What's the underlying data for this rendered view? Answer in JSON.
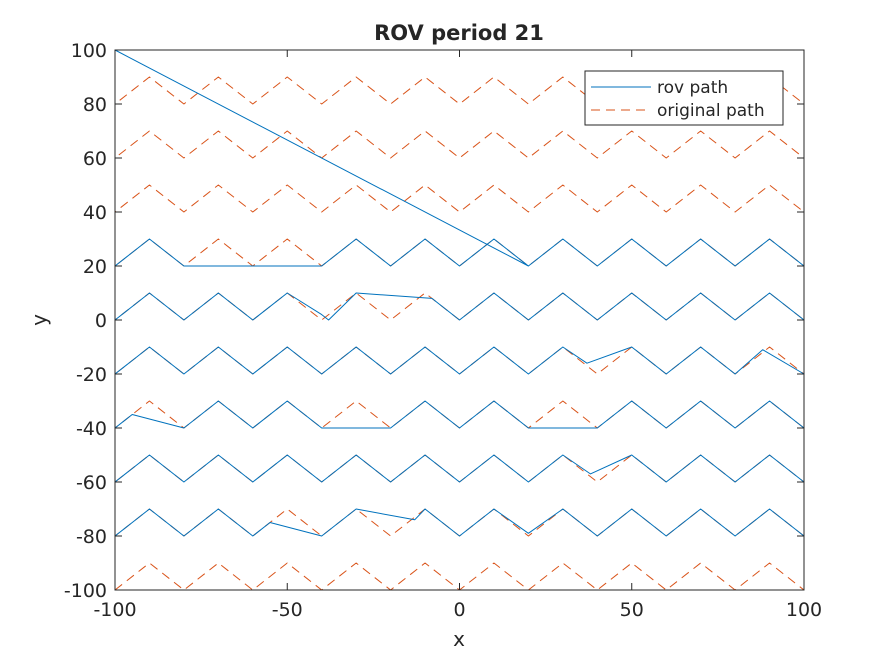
{
  "chart_data": {
    "type": "line",
    "title": "ROV period 21",
    "xlabel": "x",
    "ylabel": "y",
    "xlim": [
      -100,
      100
    ],
    "ylim": [
      -100,
      100
    ],
    "xticks": [
      -100,
      -50,
      0,
      50,
      100
    ],
    "yticks": [
      -100,
      -80,
      -60,
      -40,
      -20,
      0,
      20,
      40,
      60,
      80,
      100
    ],
    "grid": false,
    "box": true,
    "legend_position": "top-right",
    "colors": {
      "rov_path": "#0072BD",
      "original_path": "#D95319",
      "axes": "#262626"
    },
    "series": [
      {
        "name": "rov path",
        "style": "solid",
        "points": [
          [
            20,
            20
          ],
          [
            -100,
            100
          ],
          [
            -100,
            -100
          ],
          [
            -100,
            -80
          ],
          [
            -90,
            -70
          ],
          [
            -80,
            -80
          ],
          [
            -70,
            -70
          ],
          [
            -60,
            -80
          ],
          [
            -55,
            -75
          ],
          [
            -40,
            -80
          ],
          [
            -30,
            -70
          ],
          [
            -13,
            -74
          ],
          [
            -10,
            -70
          ],
          [
            0,
            -80
          ],
          [
            10,
            -70
          ],
          [
            20,
            -79
          ],
          [
            30,
            -70
          ],
          [
            40,
            -80
          ],
          [
            50,
            -70
          ],
          [
            60,
            -80
          ],
          [
            70,
            -70
          ],
          [
            80,
            -80
          ],
          [
            90,
            -70
          ],
          [
            100,
            -80
          ],
          [
            100,
            -60
          ],
          [
            90,
            -50
          ],
          [
            80,
            -60
          ],
          [
            70,
            -50
          ],
          [
            60,
            -60
          ],
          [
            50,
            -50
          ],
          [
            38,
            -57
          ],
          [
            30,
            -50
          ],
          [
            20,
            -60
          ],
          [
            10,
            -50
          ],
          [
            0,
            -60
          ],
          [
            -10,
            -50
          ],
          [
            -20,
            -60
          ],
          [
            -30,
            -50
          ],
          [
            -40,
            -60
          ],
          [
            -50,
            -50
          ],
          [
            -60,
            -60
          ],
          [
            -70,
            -50
          ],
          [
            -80,
            -60
          ],
          [
            -90,
            -50
          ],
          [
            -100,
            -60
          ],
          [
            -100,
            -40
          ],
          [
            -95,
            -35
          ],
          [
            -80,
            -40
          ],
          [
            -70,
            -30
          ],
          [
            -60,
            -40
          ],
          [
            -50,
            -30
          ],
          [
            -40,
            -40
          ],
          [
            -20,
            -40
          ],
          [
            -10,
            -30
          ],
          [
            0,
            -40
          ],
          [
            10,
            -30
          ],
          [
            20,
            -40
          ],
          [
            40,
            -40
          ],
          [
            50,
            -30
          ],
          [
            60,
            -40
          ],
          [
            70,
            -30
          ],
          [
            80,
            -40
          ],
          [
            90,
            -30
          ],
          [
            100,
            -40
          ],
          [
            100,
            -20
          ],
          [
            88,
            -11
          ],
          [
            80,
            -20
          ],
          [
            70,
            -10
          ],
          [
            60,
            -20
          ],
          [
            50,
            -10
          ],
          [
            37,
            -16
          ],
          [
            30,
            -10
          ],
          [
            20,
            -20
          ],
          [
            10,
            -10
          ],
          [
            0,
            -20
          ],
          [
            -10,
            -10
          ],
          [
            -20,
            -20
          ],
          [
            -30,
            -10
          ],
          [
            -40,
            -20
          ],
          [
            -50,
            -10
          ],
          [
            -60,
            -20
          ],
          [
            -70,
            -10
          ],
          [
            -80,
            -20
          ],
          [
            -90,
            -10
          ],
          [
            -100,
            -20
          ],
          [
            -100,
            0
          ],
          [
            -90,
            10
          ],
          [
            -80,
            0
          ],
          [
            -70,
            10
          ],
          [
            -60,
            0
          ],
          [
            -50,
            10
          ],
          [
            -40,
            2
          ],
          [
            -38,
            0
          ],
          [
            -30,
            10
          ],
          [
            -8,
            8
          ],
          [
            0,
            0
          ],
          [
            10,
            10
          ],
          [
            20,
            0
          ],
          [
            30,
            10
          ],
          [
            40,
            0
          ],
          [
            50,
            10
          ],
          [
            60,
            0
          ],
          [
            70,
            10
          ],
          [
            80,
            0
          ],
          [
            90,
            10
          ],
          [
            100,
            0
          ],
          [
            100,
            20
          ],
          [
            90,
            30
          ],
          [
            80,
            20
          ],
          [
            70,
            30
          ],
          [
            60,
            20
          ],
          [
            50,
            30
          ],
          [
            40,
            20
          ],
          [
            30,
            30
          ],
          [
            20,
            20
          ],
          [
            10,
            30
          ],
          [
            0,
            20
          ],
          [
            -10,
            30
          ],
          [
            -20,
            20
          ],
          [
            -30,
            30
          ],
          [
            -40,
            20
          ],
          [
            -80,
            20
          ],
          [
            -90,
            30
          ],
          [
            -100,
            20
          ]
        ]
      },
      {
        "name": "original path",
        "style": "dashed",
        "points": [
          [
            -100,
            -100
          ],
          [
            -90,
            -90
          ],
          [
            -80,
            -100
          ],
          [
            -70,
            -90
          ],
          [
            -60,
            -100
          ],
          [
            -50,
            -90
          ],
          [
            -40,
            -100
          ],
          [
            -30,
            -90
          ],
          [
            -20,
            -100
          ],
          [
            -10,
            -90
          ],
          [
            0,
            -100
          ],
          [
            10,
            -90
          ],
          [
            20,
            -100
          ],
          [
            30,
            -90
          ],
          [
            40,
            -100
          ],
          [
            50,
            -90
          ],
          [
            60,
            -100
          ],
          [
            70,
            -90
          ],
          [
            80,
            -100
          ],
          [
            90,
            -90
          ],
          [
            100,
            -100
          ],
          [
            100,
            -80
          ],
          [
            90,
            -70
          ],
          [
            80,
            -80
          ],
          [
            70,
            -70
          ],
          [
            60,
            -80
          ],
          [
            50,
            -70
          ],
          [
            40,
            -80
          ],
          [
            30,
            -70
          ],
          [
            20,
            -80
          ],
          [
            10,
            -70
          ],
          [
            0,
            -80
          ],
          [
            -10,
            -70
          ],
          [
            -20,
            -80
          ],
          [
            -30,
            -70
          ],
          [
            -40,
            -80
          ],
          [
            -50,
            -70
          ],
          [
            -60,
            -80
          ],
          [
            -70,
            -70
          ],
          [
            -80,
            -80
          ],
          [
            -90,
            -70
          ],
          [
            -100,
            -80
          ],
          [
            -100,
            -60
          ],
          [
            -90,
            -50
          ],
          [
            -80,
            -60
          ],
          [
            -70,
            -50
          ],
          [
            -60,
            -60
          ],
          [
            -50,
            -50
          ],
          [
            -40,
            -60
          ],
          [
            -30,
            -50
          ],
          [
            -20,
            -60
          ],
          [
            -10,
            -50
          ],
          [
            0,
            -60
          ],
          [
            10,
            -50
          ],
          [
            20,
            -60
          ],
          [
            30,
            -50
          ],
          [
            40,
            -60
          ],
          [
            50,
            -50
          ],
          [
            60,
            -60
          ],
          [
            70,
            -50
          ],
          [
            80,
            -60
          ],
          [
            90,
            -50
          ],
          [
            100,
            -60
          ],
          [
            100,
            -40
          ],
          [
            90,
            -30
          ],
          [
            80,
            -40
          ],
          [
            70,
            -30
          ],
          [
            60,
            -40
          ],
          [
            50,
            -30
          ],
          [
            40,
            -40
          ],
          [
            30,
            -30
          ],
          [
            20,
            -40
          ],
          [
            10,
            -30
          ],
          [
            0,
            -40
          ],
          [
            -10,
            -30
          ],
          [
            -20,
            -40
          ],
          [
            -30,
            -30
          ],
          [
            -40,
            -40
          ],
          [
            -50,
            -30
          ],
          [
            -60,
            -40
          ],
          [
            -70,
            -30
          ],
          [
            -80,
            -40
          ],
          [
            -90,
            -30
          ],
          [
            -100,
            -40
          ],
          [
            -100,
            -20
          ],
          [
            -90,
            -10
          ],
          [
            -80,
            -20
          ],
          [
            -70,
            -10
          ],
          [
            -60,
            -20
          ],
          [
            -50,
            -10
          ],
          [
            -40,
            -20
          ],
          [
            -30,
            -10
          ],
          [
            -20,
            -20
          ],
          [
            -10,
            -10
          ],
          [
            0,
            -20
          ],
          [
            10,
            -10
          ],
          [
            20,
            -20
          ],
          [
            30,
            -10
          ],
          [
            40,
            -20
          ],
          [
            50,
            -10
          ],
          [
            60,
            -20
          ],
          [
            70,
            -10
          ],
          [
            80,
            -20
          ],
          [
            90,
            -10
          ],
          [
            100,
            -20
          ],
          [
            100,
            0
          ],
          [
            90,
            10
          ],
          [
            80,
            0
          ],
          [
            70,
            10
          ],
          [
            60,
            0
          ],
          [
            50,
            10
          ],
          [
            40,
            0
          ],
          [
            30,
            10
          ],
          [
            20,
            0
          ],
          [
            10,
            10
          ],
          [
            0,
            0
          ],
          [
            -10,
            10
          ],
          [
            -20,
            0
          ],
          [
            -30,
            10
          ],
          [
            -40,
            0
          ],
          [
            -50,
            10
          ],
          [
            -60,
            0
          ],
          [
            -70,
            10
          ],
          [
            -80,
            0
          ],
          [
            -90,
            10
          ],
          [
            -100,
            0
          ],
          [
            -100,
            20
          ],
          [
            -90,
            30
          ],
          [
            -80,
            20
          ],
          [
            -70,
            30
          ],
          [
            -60,
            20
          ],
          [
            -50,
            30
          ],
          [
            -40,
            20
          ],
          [
            -30,
            30
          ],
          [
            -20,
            20
          ],
          [
            -10,
            30
          ],
          [
            0,
            20
          ],
          [
            10,
            30
          ],
          [
            20,
            20
          ],
          [
            30,
            30
          ],
          [
            40,
            20
          ],
          [
            50,
            30
          ],
          [
            60,
            20
          ],
          [
            70,
            30
          ],
          [
            80,
            20
          ],
          [
            90,
            30
          ],
          [
            100,
            20
          ],
          [
            100,
            40
          ],
          [
            90,
            50
          ],
          [
            80,
            40
          ],
          [
            70,
            50
          ],
          [
            60,
            40
          ],
          [
            50,
            50
          ],
          [
            40,
            40
          ],
          [
            30,
            50
          ],
          [
            20,
            40
          ],
          [
            10,
            50
          ],
          [
            0,
            40
          ],
          [
            -10,
            50
          ],
          [
            -20,
            40
          ],
          [
            -30,
            50
          ],
          [
            -40,
            40
          ],
          [
            -50,
            50
          ],
          [
            -60,
            40
          ],
          [
            -70,
            50
          ],
          [
            -80,
            40
          ],
          [
            -90,
            50
          ],
          [
            -100,
            40
          ],
          [
            -100,
            60
          ],
          [
            -90,
            70
          ],
          [
            -80,
            60
          ],
          [
            -70,
            70
          ],
          [
            -60,
            60
          ],
          [
            -50,
            70
          ],
          [
            -40,
            60
          ],
          [
            -30,
            70
          ],
          [
            -20,
            60
          ],
          [
            -10,
            70
          ],
          [
            0,
            60
          ],
          [
            10,
            70
          ],
          [
            20,
            60
          ],
          [
            30,
            70
          ],
          [
            40,
            60
          ],
          [
            50,
            70
          ],
          [
            60,
            60
          ],
          [
            70,
            70
          ],
          [
            80,
            60
          ],
          [
            90,
            70
          ],
          [
            100,
            60
          ],
          [
            100,
            80
          ],
          [
            90,
            90
          ],
          [
            80,
            80
          ],
          [
            70,
            90
          ],
          [
            60,
            80
          ],
          [
            50,
            90
          ],
          [
            40,
            80
          ],
          [
            30,
            90
          ],
          [
            20,
            80
          ],
          [
            10,
            90
          ],
          [
            0,
            80
          ],
          [
            -10,
            90
          ],
          [
            -20,
            80
          ],
          [
            -30,
            90
          ],
          [
            -40,
            80
          ],
          [
            -50,
            90
          ],
          [
            -60,
            80
          ],
          [
            -70,
            90
          ],
          [
            -80,
            80
          ],
          [
            -90,
            90
          ],
          [
            -100,
            80
          ],
          [
            -100,
            100
          ]
        ]
      }
    ]
  }
}
